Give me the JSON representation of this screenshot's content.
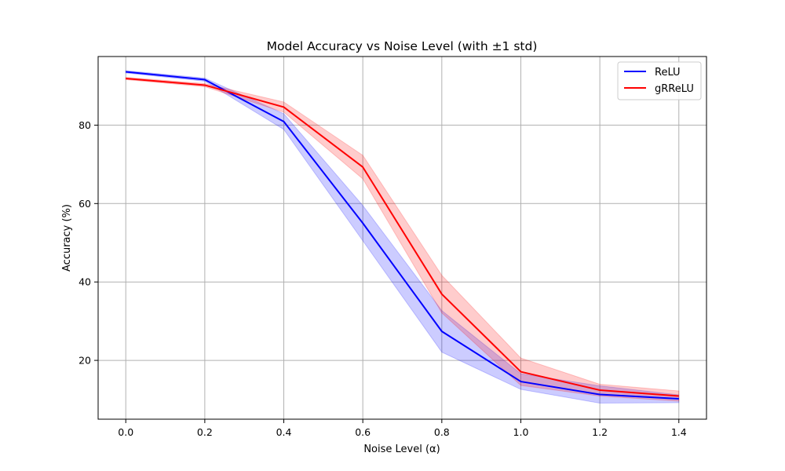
{
  "chart_data": {
    "type": "line",
    "title": "Model Accuracy vs Noise Level (with ±1 std)",
    "xlabel": "Noise Level (α)",
    "ylabel": "Accuracy (%)",
    "x": [
      0.0,
      0.2,
      0.4,
      0.6,
      0.8,
      1.0,
      1.2,
      1.4
    ],
    "xlim": [
      -0.07,
      1.47
    ],
    "ylim": [
      5.0,
      97.5
    ],
    "xticks": [
      0.0,
      0.2,
      0.4,
      0.6,
      0.8,
      1.0,
      1.2,
      1.4
    ],
    "xtick_labels": [
      "0.0",
      "0.2",
      "0.4",
      "0.6",
      "0.8",
      "1.0",
      "1.2",
      "1.4"
    ],
    "yticks": [
      20,
      40,
      60,
      80
    ],
    "ytick_labels": [
      "20",
      "40",
      "60",
      "80"
    ],
    "grid": true,
    "legend_position": "top-right",
    "series": [
      {
        "name": "ReLU",
        "color": "#0000ff",
        "band_color": "#0000ff",
        "values": [
          93.6,
          91.6,
          80.9,
          55.0,
          27.4,
          14.6,
          11.3,
          10.2
        ],
        "std": [
          0.3,
          0.4,
          2.0,
          4.5,
          5.3,
          2.0,
          2.2,
          1.0
        ]
      },
      {
        "name": "gRReLU",
        "color": "#ff0000",
        "band_color": "#ff0000",
        "values": [
          91.9,
          90.2,
          84.6,
          69.3,
          36.9,
          17.1,
          12.4,
          10.9
        ],
        "std": [
          0.3,
          0.4,
          1.3,
          3.0,
          4.8,
          3.5,
          1.5,
          1.3
        ]
      }
    ]
  }
}
